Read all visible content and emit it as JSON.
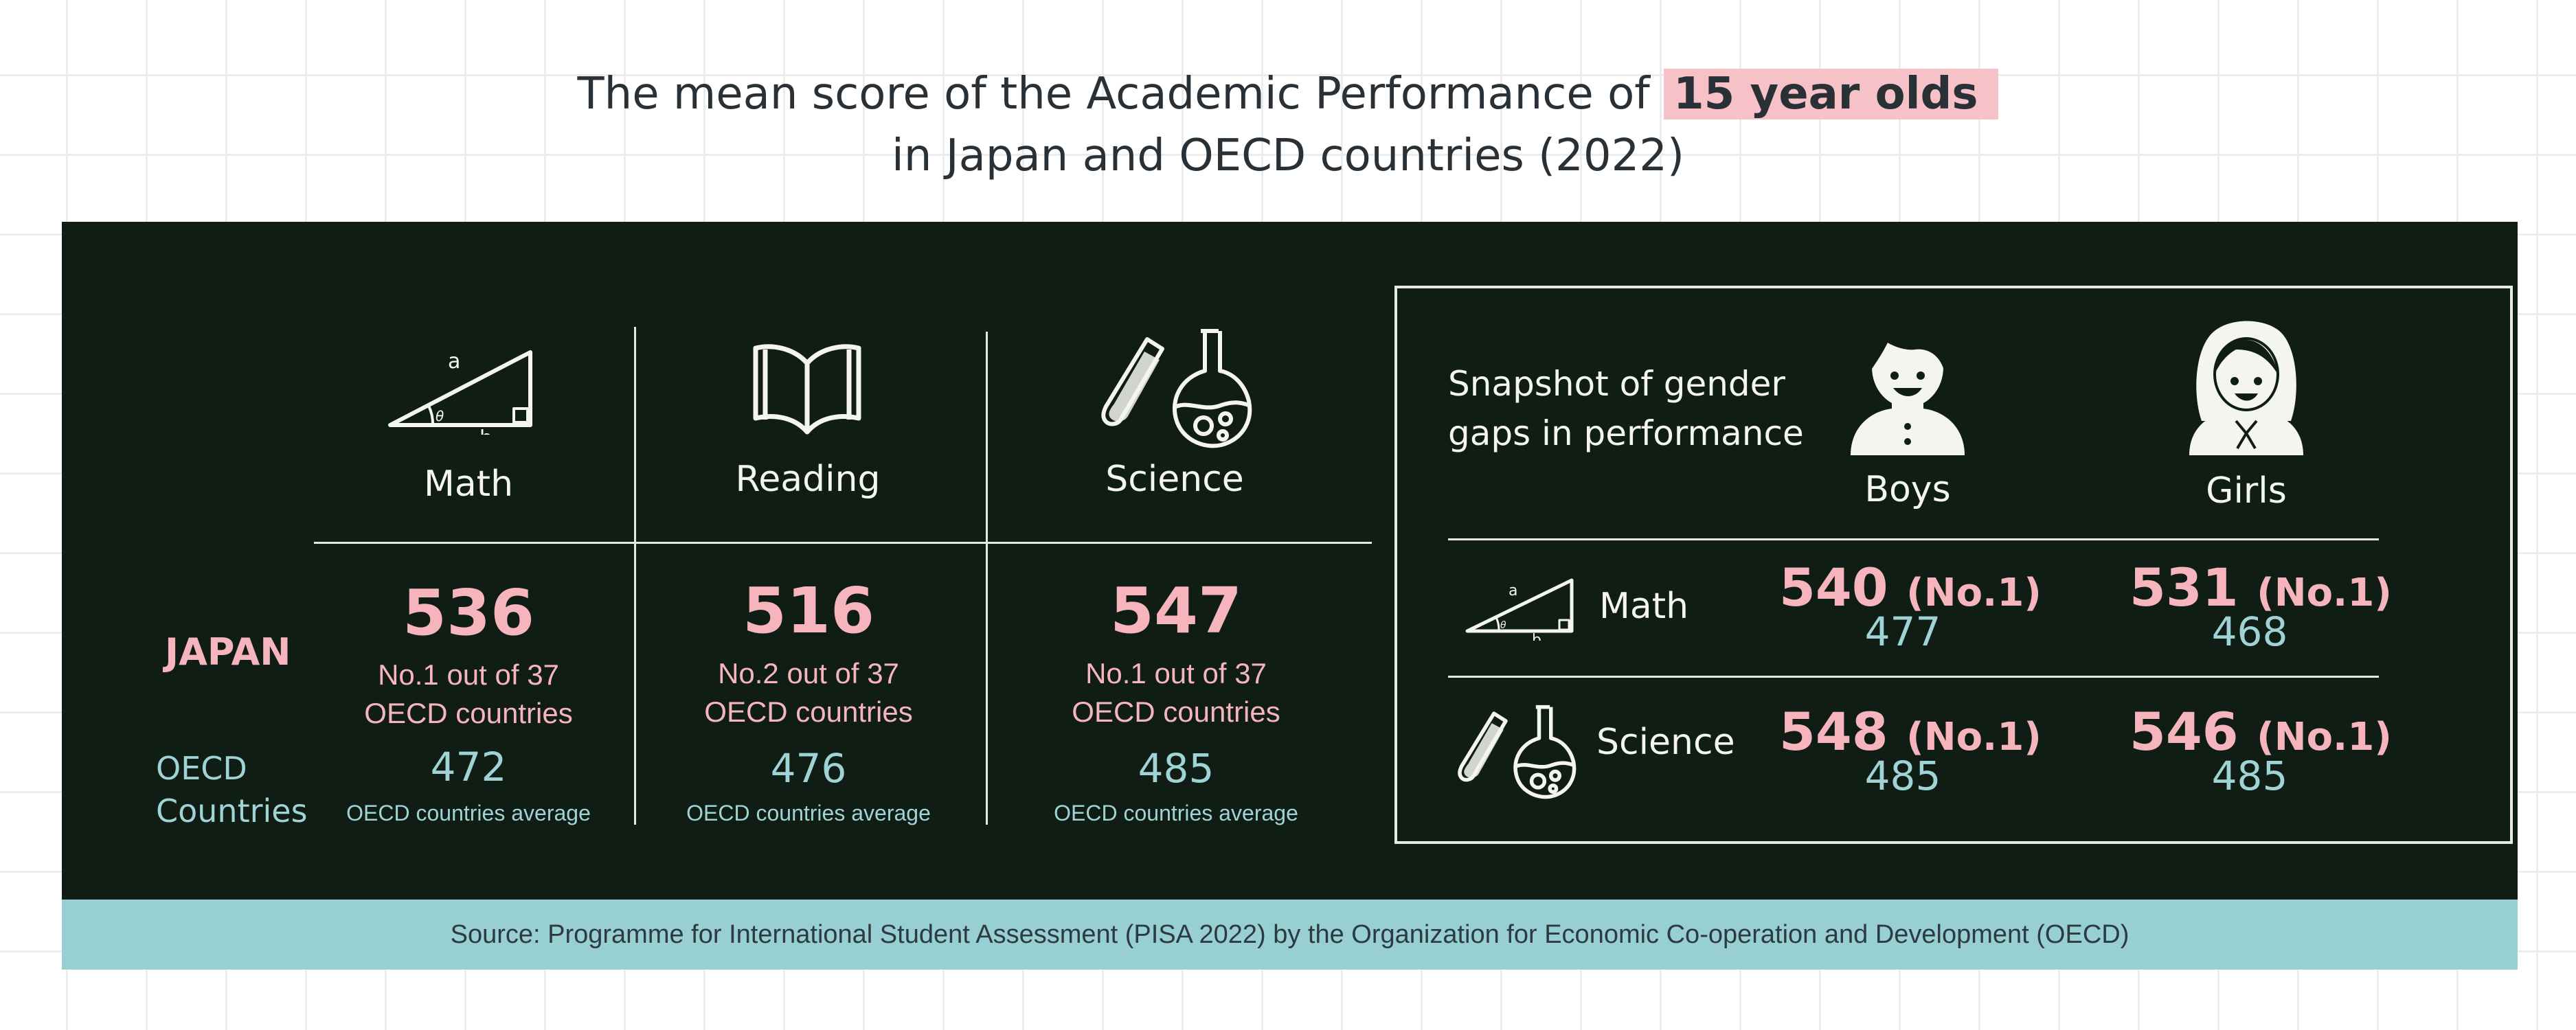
{
  "title": {
    "line1_prefix": "The mean score of the Academic Performance of ",
    "highlight": "15 year olds",
    "line2": "in Japan and OECD countries (2022)"
  },
  "row_labels": {
    "japan": "JAPAN",
    "oecd_line1": "OECD",
    "oecd_line2": "Countries"
  },
  "subjects": [
    {
      "name": "Math",
      "score": "536",
      "rank_line1": "No.1 out of 37",
      "rank_line2": "OECD countries",
      "oecd_avg": "472",
      "avg_label": "OECD countries average",
      "icon": "triangle-icon"
    },
    {
      "name": "Reading",
      "score": "516",
      "rank_line1": "No.2 out of 37",
      "rank_line2": "OECD countries",
      "oecd_avg": "476",
      "avg_label": "OECD countries average",
      "icon": "open-book-icon"
    },
    {
      "name": "Science",
      "score": "547",
      "rank_line1": "No.1 out of 37",
      "rank_line2": "OECD countries",
      "oecd_avg": "485",
      "avg_label": "OECD countries average",
      "icon": "flask-test-tube-icon"
    }
  ],
  "triangle_labels": {
    "a": "a",
    "b": "b",
    "theta": "θ"
  },
  "gender": {
    "title_line1": "Snapshot of gender",
    "title_line2": "gaps in performance",
    "boys_label": "Boys",
    "girls_label": "Girls",
    "rows": [
      {
        "subject": "Math",
        "boys_score": "540",
        "boys_rank": "(No.1)",
        "boys_oecd": "477",
        "girls_score": "531",
        "girls_rank": "(No.1)",
        "girls_oecd": "468"
      },
      {
        "subject": "Science",
        "boys_score": "548",
        "boys_rank": "(No.1)",
        "boys_oecd": "485",
        "girls_score": "546",
        "girls_rank": "(No.1)",
        "girls_oecd": "485"
      }
    ]
  },
  "source": "Source: Programme for International Student Assessment (PISA 2022) by the Organization for Economic Co-operation and Development (OECD)",
  "colors": {
    "board": "#0f1d14",
    "japan_pink": "#f6b5bd",
    "oecd_blue": "#9fd3d5",
    "highlight": "#f6c2c7",
    "source_bar": "#97cfd3"
  }
}
